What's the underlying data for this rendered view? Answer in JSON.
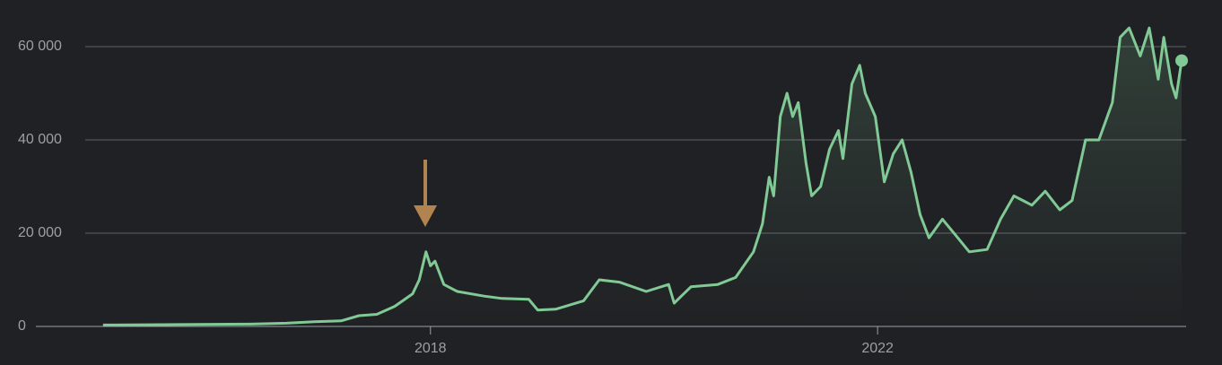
{
  "chart_data": {
    "type": "line",
    "x": [
      2015.07,
      2015.75,
      2016.39,
      2016.71,
      2016.96,
      2017.2,
      2017.36,
      2017.52,
      2017.68,
      2017.84,
      2017.9,
      2017.96,
      2018.0,
      2018.04,
      2018.12,
      2018.24,
      2018.48,
      2018.64,
      2018.88,
      2018.96,
      2019.12,
      2019.37,
      2019.51,
      2019.69,
      2019.93,
      2020.13,
      2020.18,
      2020.33,
      2020.57,
      2020.73,
      2020.89,
      2020.97,
      2021.03,
      2021.07,
      2021.13,
      2021.19,
      2021.24,
      2021.29,
      2021.36,
      2021.41,
      2021.49,
      2021.57,
      2021.65,
      2021.69,
      2021.77,
      2021.84,
      2021.89,
      2021.98,
      2022.06,
      2022.14,
      2022.22,
      2022.3,
      2022.38,
      2022.46,
      2022.58,
      2022.7,
      2022.82,
      2022.98,
      2023.1,
      2023.22,
      2023.38,
      2023.5,
      2023.63,
      2023.74,
      2023.86,
      2023.98,
      2024.1,
      2024.17,
      2024.25,
      2024.35,
      2024.43,
      2024.51,
      2024.56,
      2024.63,
      2024.67,
      2024.72
    ],
    "series": [
      {
        "color": "#81c995",
        "values": [
          300,
          400,
          500,
          700,
          1000,
          1200,
          2300,
          2600,
          4300,
          7000,
          10000,
          16000,
          13000,
          14000,
          9000,
          7500,
          6500,
          6000,
          5800,
          3500,
          3700,
          5500,
          10000,
          9500,
          7500,
          9000,
          5000,
          8500,
          9000,
          10500,
          16000,
          22000,
          32000,
          28000,
          45000,
          50000,
          45000,
          48000,
          35000,
          28000,
          30000,
          38000,
          42000,
          36000,
          52000,
          56000,
          50000,
          45000,
          31000,
          37000,
          40000,
          33000,
          24000,
          19000,
          23000,
          19500,
          16000,
          16500,
          23000,
          28000,
          26000,
          29000,
          25000,
          27000,
          40000,
          40000,
          48000,
          62000,
          64000,
          58000,
          64000,
          53000,
          62000,
          52000,
          49000,
          57000
        ]
      }
    ],
    "xlim": [
      2014.47,
      2024.76
    ],
    "xticks": [
      2018,
      2022
    ],
    "ylim": [
      0,
      65000
    ],
    "yticks": [
      {
        "value": 0,
        "label": "0"
      },
      {
        "value": 20000,
        "label": "20 000"
      },
      {
        "value": 40000,
        "label": "40 000"
      },
      {
        "value": 60000,
        "label": "60 000"
      }
    ],
    "grid": true
  }
}
